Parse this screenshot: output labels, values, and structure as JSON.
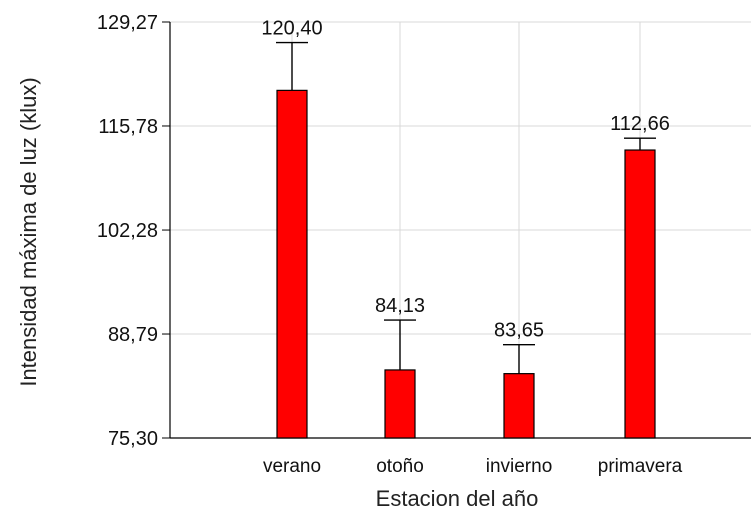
{
  "chart_data": {
    "type": "bar",
    "categories": [
      "verano",
      "otoño",
      "invierno",
      "primavera"
    ],
    "values": [
      120.4,
      84.13,
      83.65,
      112.66
    ],
    "value_labels": [
      "120,40",
      "84,13",
      "83,65",
      "112,66"
    ],
    "error_upper": [
      126.6,
      90.6,
      87.4,
      114.2
    ],
    "xlabel": "Estacion del año",
    "ylabel": "Intensidad máxima de luz (klux)",
    "ylim": [
      75.3,
      129.27
    ],
    "yticks": [
      75.3,
      88.79,
      102.28,
      115.78,
      129.27
    ],
    "ytick_labels": [
      "75,30",
      "88,79",
      "102,28",
      "115,78",
      "129,27"
    ],
    "grid": true,
    "legend": "none",
    "bar_color": "#ff0000",
    "error_bar_color": "#000000",
    "grid_color": "#d8d8d8"
  }
}
